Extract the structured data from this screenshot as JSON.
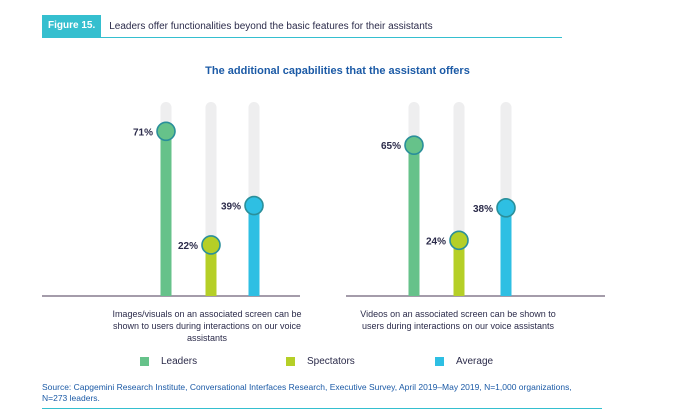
{
  "figure": {
    "tag": "Figure 15.",
    "title": "Leaders offer functionalities beyond the basic features for their assistants"
  },
  "chart_data": {
    "type": "bar",
    "title": "The additional capabilities that the assistant offers",
    "categories": [
      "Images/visuals on an associated screen can be shown to users during interactions on our voice assistants",
      "Videos on an associated screen can be shown to users during interactions on our voice assistants"
    ],
    "series": [
      {
        "name": "Leaders",
        "values": [
          71,
          65
        ],
        "color": "#66c28a"
      },
      {
        "name": "Spectators",
        "values": [
          22,
          24
        ],
        "color": "#b5cf27"
      },
      {
        "name": "Average",
        "values": [
          39,
          38
        ],
        "color": "#2ebfe3"
      }
    ],
    "value_suffix": "%",
    "ylim": [
      0,
      100
    ],
    "legend_position": "bottom"
  },
  "source": "Source: Capgemini Research Institute, Conversational Interfaces Research, Executive Survey, April 2019–May 2019, N=1,000 organizations, N=273 leaders."
}
